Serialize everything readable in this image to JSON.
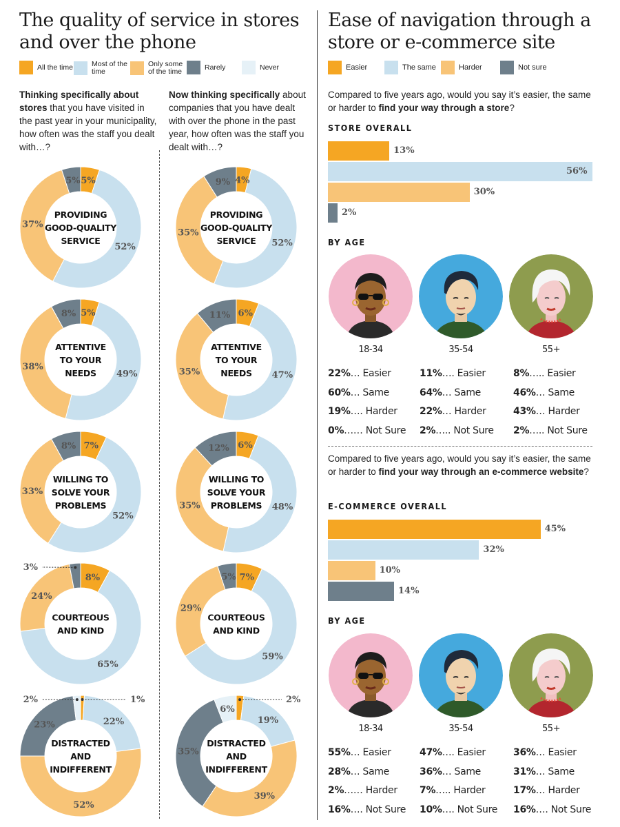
{
  "left": {
    "title_line1": "The quality of service in stores",
    "title_line2": "and over the phone",
    "legend": [
      {
        "label": "All the time",
        "color": "#F5A623"
      },
      {
        "label": "Most of the time",
        "color": "#C8E0EE"
      },
      {
        "label": "Only some of the time",
        "color": "#F8C477"
      },
      {
        "label": "Rarely",
        "color": "#6E7F8B"
      },
      {
        "label": "Never",
        "color": "#E6F1F7"
      }
    ],
    "stores_question_bold": "Thinking specifically about stores",
    "stores_question_rest": " that you have visited in the past year in your municipality, how often was the staff you dealt with…?",
    "phone_question_bold": "Now thinking specifically",
    "phone_question_rest": " about companies that you have dealt with over the phone in the past year, how often was the staff you dealt with…?"
  },
  "right": {
    "title_line1": "Ease of navigation through a",
    "title_line2": "store or e-commerce site",
    "legend": [
      {
        "label": "Easier",
        "color": "#F5A623"
      },
      {
        "label": "The same",
        "color": "#C8E0EE"
      },
      {
        "label": "Harder",
        "color": "#F8C477"
      },
      {
        "label": "Not sure",
        "color": "#6E7F8B"
      }
    ],
    "store_question_pre": "Compared to five years ago, would you say it’s easier, the same or harder to ",
    "store_question_bold": "find your way through a store",
    "store_question_post": "?",
    "store_overall_label": "STORE OVERALL",
    "by_age_label": "BY AGE",
    "ecom_question_pre": "Compared to five years ago, would you say it’s easier, the same or harder to ",
    "ecom_question_bold": "find your way through an e-commerce website",
    "ecom_question_post": "?",
    "ecom_overall_label": "E-COMMERCE OVERALL",
    "age_groups": [
      "18-34",
      "35-54",
      "55+"
    ],
    "store_by_age": [
      [
        {
          "pct": "22%",
          "dots": "…",
          "label": "Easier"
        },
        {
          "pct": "60%",
          "dots": "…",
          "label": "Same"
        },
        {
          "pct": "19%",
          "dots": "….",
          "label": "Harder"
        },
        {
          "pct": "0%",
          "dots": "……",
          "label": "Not Sure"
        }
      ],
      [
        {
          "pct": "11%",
          "dots": "….",
          "label": "Easier"
        },
        {
          "pct": "64%",
          "dots": "…",
          "label": "Same"
        },
        {
          "pct": "22%",
          "dots": "…",
          "label": "Harder"
        },
        {
          "pct": "2%",
          "dots": "…..",
          "label": "Not Sure"
        }
      ],
      [
        {
          "pct": "8%",
          "dots": "…..",
          "label": "Easier"
        },
        {
          "pct": "46%",
          "dots": "…",
          "label": "Same"
        },
        {
          "pct": "43%",
          "dots": "…",
          "label": "Harder"
        },
        {
          "pct": "2%",
          "dots": "…..",
          "label": "Not Sure"
        }
      ]
    ],
    "ecom_by_age": [
      [
        {
          "pct": "55%",
          "dots": "…",
          "label": "Easier"
        },
        {
          "pct": "28%",
          "dots": "…",
          "label": "Same"
        },
        {
          "pct": "2%",
          "dots": "……",
          "label": "Harder"
        },
        {
          "pct": "16%",
          "dots": "….",
          "label": "Not Sure"
        }
      ],
      [
        {
          "pct": "47%",
          "dots": "….",
          "label": "Easier"
        },
        {
          "pct": "36%",
          "dots": "…",
          "label": "Same"
        },
        {
          "pct": "7%",
          "dots": "…..",
          "label": "Harder"
        },
        {
          "pct": "10%",
          "dots": "….",
          "label": "Not Sure"
        }
      ],
      [
        {
          "pct": "36%",
          "dots": "…",
          "label": "Easier"
        },
        {
          "pct": "31%",
          "dots": "…",
          "label": "Same"
        },
        {
          "pct": "17%",
          "dots": "…",
          "label": "Harder"
        },
        {
          "pct": "16%",
          "dots": "….",
          "label": "Not Sure"
        }
      ]
    ]
  },
  "chart_data": [
    {
      "type": "pie",
      "group": "stores",
      "donuts": [
        {
          "center": [
            "PROVIDING",
            "GOOD-QUALITY",
            "SERVICE"
          ],
          "values": [
            5,
            52,
            37,
            5,
            0
          ],
          "labels": [
            "5%",
            "52%",
            "37%",
            "5%",
            ""
          ]
        },
        {
          "center": [
            "ATTENTIVE",
            "TO YOUR",
            "NEEDS"
          ],
          "values": [
            5,
            49,
            38,
            8,
            0
          ],
          "labels": [
            "5%",
            "49%",
            "38%",
            "8%",
            ""
          ]
        },
        {
          "center": [
            "WILLING TO",
            "SOLVE YOUR",
            "PROBLEMS"
          ],
          "values": [
            7,
            52,
            33,
            8,
            0
          ],
          "labels": [
            "7%",
            "52%",
            "33%",
            "8%",
            ""
          ]
        },
        {
          "center": [
            "COURTEOUS",
            "AND KIND"
          ],
          "values": [
            8,
            65,
            24,
            3,
            0
          ],
          "labels": [
            "8%",
            "65%",
            "24%",
            "3%",
            ""
          ]
        },
        {
          "center": [
            "DISTRACTED",
            "AND",
            "INDIFFERENT"
          ],
          "values": [
            1,
            22,
            52,
            23,
            2
          ],
          "labels": [
            "1%",
            "22%",
            "52%",
            "23%",
            "2%"
          ]
        }
      ]
    },
    {
      "type": "pie",
      "group": "phone",
      "donuts": [
        {
          "center": [
            "PROVIDING",
            "GOOD-QUALITY",
            "SERVICE"
          ],
          "values": [
            4,
            52,
            35,
            9,
            0
          ],
          "labels": [
            "4%",
            "52%",
            "35%",
            "9%",
            ""
          ]
        },
        {
          "center": [
            "ATTENTIVE",
            "TO YOUR",
            "NEEDS"
          ],
          "values": [
            6,
            47,
            35,
            11,
            0
          ],
          "labels": [
            "6%",
            "47%",
            "35%",
            "11%",
            ""
          ]
        },
        {
          "center": [
            "WILLING TO",
            "SOLVE YOUR",
            "PROBLEMS"
          ],
          "values": [
            6,
            48,
            35,
            12,
            0
          ],
          "labels": [
            "6%",
            "48%",
            "35%",
            "12%",
            ""
          ]
        },
        {
          "center": [
            "COURTEOUS",
            "AND KIND"
          ],
          "values": [
            7,
            59,
            29,
            5,
            0
          ],
          "labels": [
            "7%",
            "59%",
            "29%",
            "5%",
            ""
          ]
        },
        {
          "center": [
            "DISTRACTED",
            "AND",
            "INDIFFERENT"
          ],
          "values": [
            2,
            19,
            39,
            35,
            6
          ],
          "labels": [
            "2%",
            "19%",
            "39%",
            "35%",
            "6%"
          ]
        }
      ]
    },
    {
      "type": "bar",
      "name": "STORE OVERALL",
      "categories": [
        "Easier",
        "The same",
        "Harder",
        "Not sure"
      ],
      "values": [
        13,
        56,
        30,
        2
      ]
    },
    {
      "type": "bar",
      "name": "E-COMMERCE OVERALL",
      "categories": [
        "Easier",
        "The same",
        "Harder",
        "Not sure"
      ],
      "values": [
        45,
        32,
        10,
        14
      ]
    }
  ]
}
